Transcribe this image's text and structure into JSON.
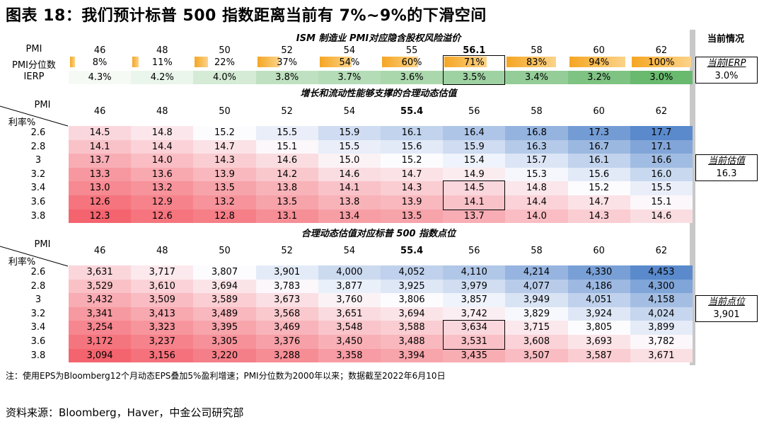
{
  "title": "图表 18：我们预计标普 500 指数距离当前有 7%~9%的下滑空间",
  "side_header": "当前情况",
  "section1": {
    "title": "ISM 制造业 PMI对应隐含股权风险溢价",
    "pmi_label": "PMI",
    "pmi_values": [
      "46",
      "48",
      "50",
      "52",
      "54",
      "55",
      "56.1",
      "58",
      "60",
      "62"
    ],
    "pct_label": "PMI分位数",
    "pct_values": [
      "8%",
      "11%",
      "22%",
      "37%",
      "54%",
      "60%",
      "71%",
      "83%",
      "94%",
      "100%"
    ],
    "pct_fill": [
      0.08,
      0.11,
      0.22,
      0.37,
      0.54,
      0.6,
      0.71,
      0.83,
      0.94,
      1.0
    ],
    "ierp_label": "IERP",
    "ierp_values": [
      "4.3%",
      "4.2%",
      "4.0%",
      "3.8%",
      "3.7%",
      "3.6%",
      "3.5%",
      "3.4%",
      "3.2%",
      "3.0%"
    ],
    "side_label": "当前IERP",
    "side_value": "3.0%"
  },
  "section2": {
    "title": "增长和流动性能够支撑的合理动态估值",
    "corner_pmi": "PMI",
    "corner_rate": "利率%",
    "pmi_values": [
      "46",
      "48",
      "50",
      "52",
      "54",
      "55.4",
      "56",
      "58",
      "60",
      "62"
    ],
    "rates": [
      "2.6",
      "2.8",
      "3",
      "3.2",
      "3.4",
      "3.6",
      "3.8"
    ],
    "rows": [
      [
        "14.5",
        "14.8",
        "15.2",
        "15.5",
        "15.9",
        "16.1",
        "16.4",
        "16.8",
        "17.3",
        "17.7"
      ],
      [
        "14.1",
        "14.4",
        "14.7",
        "15.1",
        "15.5",
        "15.6",
        "15.9",
        "16.3",
        "16.7",
        "17.1"
      ],
      [
        "13.7",
        "14.0",
        "14.3",
        "14.6",
        "15.0",
        "15.2",
        "15.4",
        "15.7",
        "16.1",
        "16.6"
      ],
      [
        "13.3",
        "13.6",
        "13.9",
        "14.2",
        "14.6",
        "14.7",
        "14.9",
        "15.3",
        "15.6",
        "16.0"
      ],
      [
        "13.0",
        "13.2",
        "13.5",
        "13.8",
        "14.1",
        "14.3",
        "14.5",
        "14.8",
        "15.2",
        "15.5"
      ],
      [
        "12.6",
        "12.9",
        "13.2",
        "13.5",
        "13.8",
        "13.9",
        "14.1",
        "14.4",
        "14.7",
        "15.1"
      ],
      [
        "12.3",
        "12.6",
        "12.8",
        "13.1",
        "13.4",
        "13.5",
        "13.7",
        "14.0",
        "14.3",
        "14.6"
      ]
    ],
    "side_label": "当前估值",
    "side_value": "16.3"
  },
  "section3": {
    "title": "合理动态估值对应标普 500 指数点位",
    "corner_pmi": "PMI",
    "corner_rate": "利率%",
    "pmi_values": [
      "46",
      "48",
      "50",
      "52",
      "54",
      "55.4",
      "56",
      "58",
      "60",
      "62"
    ],
    "rates": [
      "2.6",
      "2.8",
      "3",
      "3.2",
      "3.4",
      "3.6",
      "3.8"
    ],
    "rows": [
      [
        "3,631",
        "3,717",
        "3,807",
        "3,901",
        "4,000",
        "4,052",
        "4,110",
        "4,214",
        "4,330",
        "4,453"
      ],
      [
        "3,529",
        "3,610",
        "3,694",
        "3,783",
        "3,877",
        "3,925",
        "3,979",
        "4,077",
        "4,186",
        "4,300"
      ],
      [
        "3,432",
        "3,509",
        "3,589",
        "3,673",
        "3,760",
        "3,806",
        "3,857",
        "3,949",
        "4,051",
        "4,158"
      ],
      [
        "3,341",
        "3,413",
        "3,489",
        "3,568",
        "3,651",
        "3,694",
        "3,742",
        "3,829",
        "3,924",
        "4,024"
      ],
      [
        "3,254",
        "3,323",
        "3,395",
        "3,469",
        "3,548",
        "3,588",
        "3,634",
        "3,715",
        "3,805",
        "3,899"
      ],
      [
        "3,172",
        "3,237",
        "3,305",
        "3,376",
        "3,450",
        "3,488",
        "3,531",
        "3,608",
        "3,693",
        "3,782"
      ],
      [
        "3,094",
        "3,156",
        "3,220",
        "3,288",
        "3,358",
        "3,394",
        "3,435",
        "3,507",
        "3,587",
        "3,671"
      ]
    ],
    "side_label": "当前点位",
    "side_value": "3,901"
  },
  "note": "注：使用EPS为Bloomberg12个月动态EPS叠加5%盈利增速；PMI分位数为2000年以来；数据截至2022年6月10日",
  "source": "资料来源：Bloomberg，Haver，中金公司研究部",
  "chart_data": [
    {
      "type": "table",
      "title": "ISM 制造业 PMI对应隐含股权风险溢价",
      "columns": [
        "46",
        "48",
        "50",
        "52",
        "54",
        "55",
        "56.1",
        "58",
        "60",
        "62"
      ],
      "rows": {
        "PMI分位数": [
          "8%",
          "11%",
          "22%",
          "37%",
          "54%",
          "60%",
          "71%",
          "83%",
          "94%",
          "100%"
        ],
        "IERP": [
          "4.3%",
          "4.2%",
          "4.0%",
          "3.8%",
          "3.7%",
          "3.6%",
          "3.5%",
          "3.4%",
          "3.2%",
          "3.0%"
        ]
      }
    },
    {
      "type": "heatmap",
      "title": "增长和流动性能够支撑的合理动态估值",
      "x": [
        "46",
        "48",
        "50",
        "52",
        "54",
        "55.4",
        "56",
        "58",
        "60",
        "62"
      ],
      "y": [
        "2.6",
        "2.8",
        "3",
        "3.2",
        "3.4",
        "3.6",
        "3.8"
      ],
      "xlabel": "PMI",
      "ylabel": "利率%",
      "values": [
        [
          14.5,
          14.8,
          15.2,
          15.5,
          15.9,
          16.1,
          16.4,
          16.8,
          17.3,
          17.7
        ],
        [
          14.1,
          14.4,
          14.7,
          15.1,
          15.5,
          15.6,
          15.9,
          16.3,
          16.7,
          17.1
        ],
        [
          13.7,
          14.0,
          14.3,
          14.6,
          15.0,
          15.2,
          15.4,
          15.7,
          16.1,
          16.6
        ],
        [
          13.3,
          13.6,
          13.9,
          14.2,
          14.6,
          14.7,
          14.9,
          15.3,
          15.6,
          16.0
        ],
        [
          13.0,
          13.2,
          13.5,
          13.8,
          14.1,
          14.3,
          14.5,
          14.8,
          15.2,
          15.5
        ],
        [
          12.6,
          12.9,
          13.2,
          13.5,
          13.8,
          13.9,
          14.1,
          14.4,
          14.7,
          15.1
        ],
        [
          12.3,
          12.6,
          12.8,
          13.1,
          13.4,
          13.5,
          13.7,
          14.0,
          14.3,
          14.6
        ]
      ]
    },
    {
      "type": "heatmap",
      "title": "合理动态估值对应标普 500 指数点位",
      "x": [
        "46",
        "48",
        "50",
        "52",
        "54",
        "55.4",
        "56",
        "58",
        "60",
        "62"
      ],
      "y": [
        "2.6",
        "2.8",
        "3",
        "3.2",
        "3.4",
        "3.6",
        "3.8"
      ],
      "xlabel": "PMI",
      "ylabel": "利率%",
      "values": [
        [
          3631,
          3717,
          3807,
          3901,
          4000,
          4052,
          4110,
          4214,
          4330,
          4453
        ],
        [
          3529,
          3610,
          3694,
          3783,
          3877,
          3925,
          3979,
          4077,
          4186,
          4300
        ],
        [
          3432,
          3509,
          3589,
          3673,
          3760,
          3806,
          3857,
          3949,
          4051,
          4158
        ],
        [
          3341,
          3413,
          3489,
          3568,
          3651,
          3694,
          3742,
          3829,
          3924,
          4024
        ],
        [
          3254,
          3323,
          3395,
          3469,
          3548,
          3588,
          3634,
          3715,
          3805,
          3899
        ],
        [
          3172,
          3237,
          3305,
          3376,
          3450,
          3488,
          3531,
          3608,
          3693,
          3782
        ],
        [
          3094,
          3156,
          3220,
          3288,
          3358,
          3394,
          3435,
          3507,
          3587,
          3671
        ]
      ]
    }
  ]
}
